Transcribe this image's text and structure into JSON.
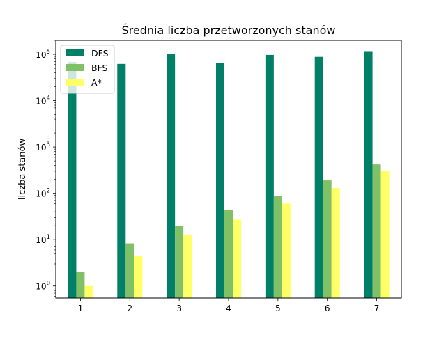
{
  "chart_data": {
    "type": "bar",
    "title": "Średnia liczba przetworzonych stanów",
    "xlabel": "",
    "ylabel": "liczba stanów",
    "yscale": "log",
    "ylim": [
      0.55,
      200000
    ],
    "grid": false,
    "legend_position": "top-left",
    "categories": [
      "1",
      "2",
      "3",
      "4",
      "5",
      "6",
      "7"
    ],
    "y_ticks": [
      {
        "value": 1,
        "base": "10",
        "exp": "0"
      },
      {
        "value": 10,
        "base": "10",
        "exp": "1"
      },
      {
        "value": 100,
        "base": "10",
        "exp": "2"
      },
      {
        "value": 1000,
        "base": "10",
        "exp": "3"
      },
      {
        "value": 10000,
        "base": "10",
        "exp": "4"
      },
      {
        "value": 100000,
        "base": "10",
        "exp": "5"
      }
    ],
    "series": [
      {
        "name": "DFS",
        "color": "#008066",
        "values": [
          68000,
          62000,
          100000,
          64000,
          97000,
          88000,
          117000
        ]
      },
      {
        "name": "BFS",
        "color": "#80c066",
        "values": [
          2,
          8.3,
          20,
          43,
          88,
          190,
          420
        ]
      },
      {
        "name": "A*",
        "color": "#ffff66",
        "values": [
          1,
          4.5,
          12.5,
          27,
          60,
          130,
          300
        ]
      }
    ]
  }
}
